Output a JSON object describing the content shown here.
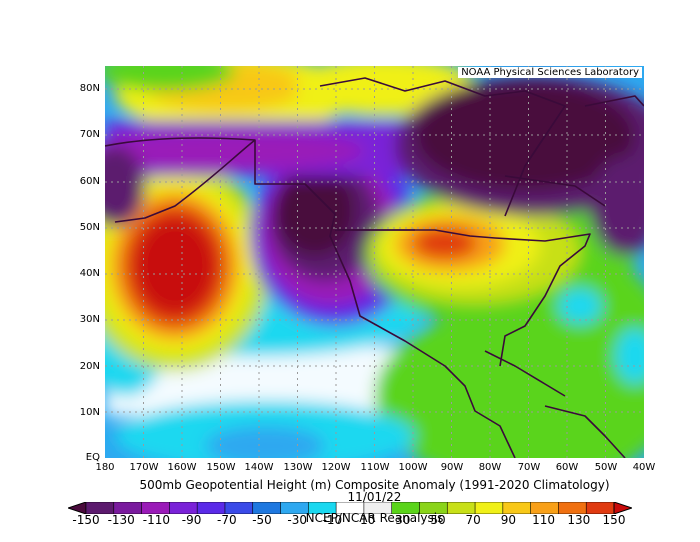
{
  "map": {
    "credit": "NOAA Physical Sciences Laboratory",
    "latitude_labels": [
      "80N",
      "70N",
      "60N",
      "50N",
      "40N",
      "30N",
      "20N",
      "10N",
      "EQ"
    ],
    "longitude_labels": [
      "180",
      "170W",
      "160W",
      "150W",
      "140W",
      "130W",
      "120W",
      "110W",
      "100W",
      "90W",
      "80W",
      "70W",
      "60W",
      "50W",
      "40W"
    ],
    "title": "500mb Geopotential Height (m) Composite Anomaly (1991-2020 Climatology)",
    "date": "11/01/22",
    "source": "NCEP/NCAR Reanalysis"
  },
  "colorbar": {
    "labels": [
      "-150",
      "-130",
      "-110",
      "-90",
      "-70",
      "-50",
      "-30",
      "-10",
      "10",
      "30",
      "50",
      "70",
      "90",
      "110",
      "130",
      "150"
    ],
    "colors": [
      "#4a0a3c",
      "#5c1a6e",
      "#7a1a9e",
      "#9a1ab8",
      "#7a22d8",
      "#5a2ae8",
      "#3a4ae8",
      "#1e78e0",
      "#2ea8f0",
      "#1ad8f0",
      "#ffffff",
      "#f0f0f0",
      "#5ad41a",
      "#8ad41a",
      "#c8e018",
      "#f0f018",
      "#f8c818",
      "#f8a018",
      "#f07010",
      "#e03a10",
      "#c80a0a"
    ]
  }
}
